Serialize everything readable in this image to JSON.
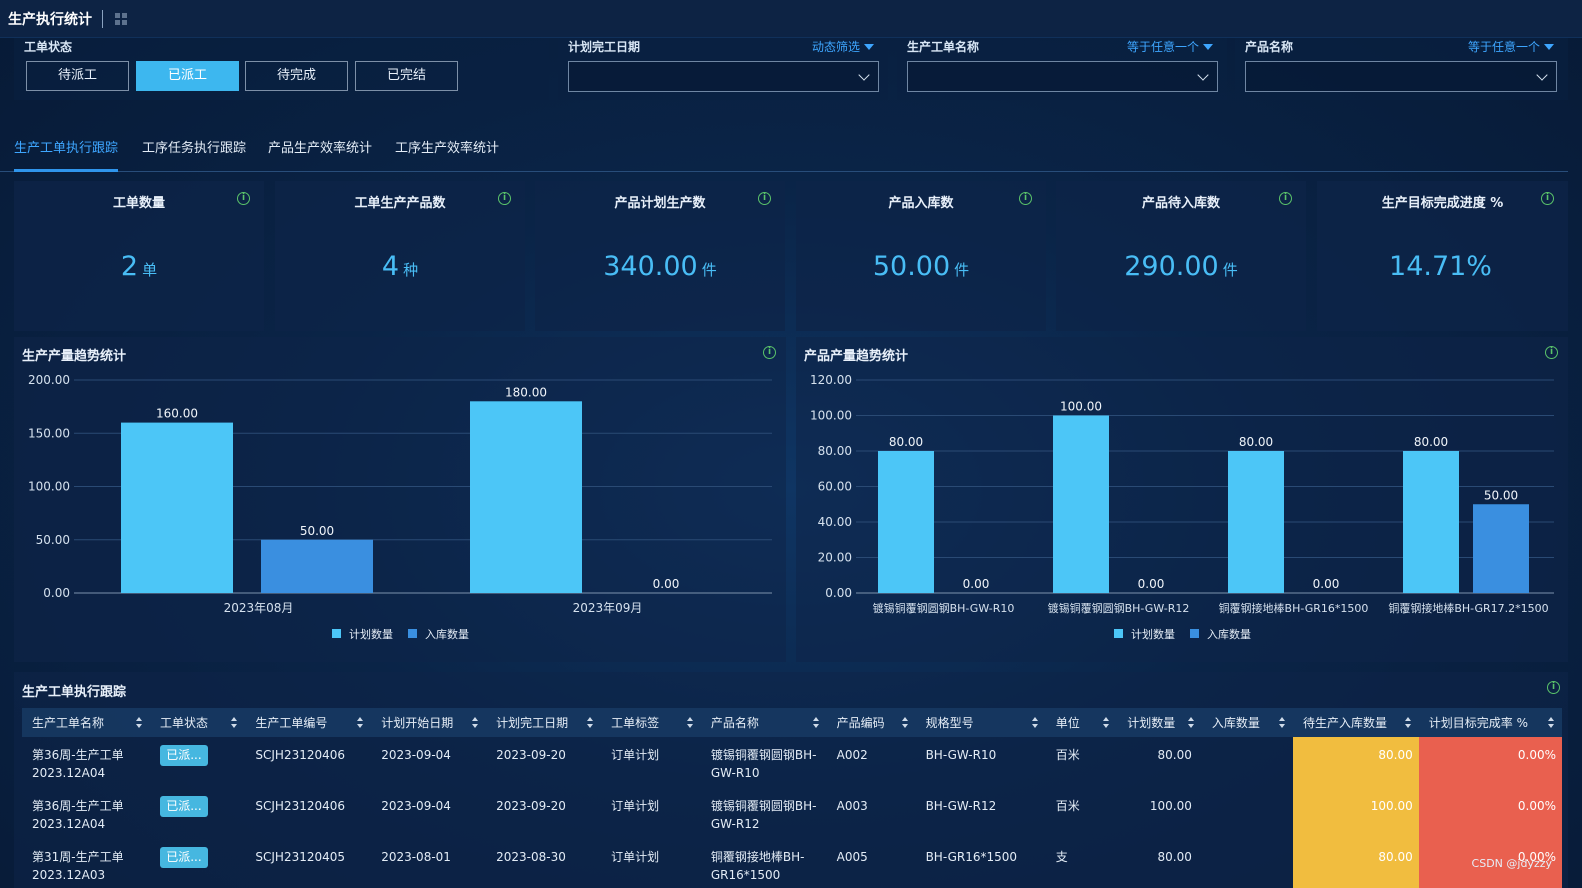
{
  "app": {
    "title": "生产执行统计"
  },
  "filters": {
    "order_status": {
      "label": "工单状态",
      "buttons": [
        {
          "label": "待派工",
          "active": false
        },
        {
          "label": "已派工",
          "active": true
        },
        {
          "label": "待完成",
          "active": false
        },
        {
          "label": "已完结",
          "active": false
        }
      ]
    },
    "plan_end_date": {
      "label": "计划完工日期",
      "mode": "动态筛选",
      "value": ""
    },
    "order_name": {
      "label": "生产工单名称",
      "mode": "等于任意一个",
      "value": ""
    },
    "product_name": {
      "label": "产品名称",
      "mode": "等于任意一个",
      "value": ""
    }
  },
  "tabs": [
    {
      "label": "生产工单执行跟踪",
      "active": true
    },
    {
      "label": "工序任务执行跟踪",
      "active": false
    },
    {
      "label": "产品生产效率统计",
      "active": false
    },
    {
      "label": "工序生产效率统计",
      "active": false
    }
  ],
  "kpis": [
    {
      "label": "工单数量",
      "value": "2",
      "unit": "单"
    },
    {
      "label": "工单生产产品数",
      "value": "4",
      "unit": "种"
    },
    {
      "label": "产品计划生产数",
      "value": "340.00",
      "unit": "件"
    },
    {
      "label": "产品入库数",
      "value": "50.00",
      "unit": "件"
    },
    {
      "label": "产品待入库数",
      "value": "290.00",
      "unit": "件"
    },
    {
      "label": "生产目标完成进度 %",
      "value": "14.71%",
      "unit": ""
    }
  ],
  "colors": {
    "plan": "#4cc6f7",
    "stock": "#3a8fe0",
    "accent": "#3ea6ff",
    "pending_cell": "#f1bd3f",
    "rate_cell": "#e9604f"
  },
  "chart_data": [
    {
      "type": "bar",
      "title": "生产产量趋势统计",
      "categories": [
        "2023年08月",
        "2023年09月"
      ],
      "series": [
        {
          "name": "计划数量",
          "values": [
            160,
            180
          ],
          "labels": [
            "160.00",
            "180.00"
          ]
        },
        {
          "name": "入库数量",
          "values": [
            50,
            0
          ],
          "labels": [
            "50.00",
            "0.00"
          ]
        }
      ],
      "ylim": [
        0,
        200
      ],
      "yticks": [
        "0.00",
        "50.00",
        "100.00",
        "150.00",
        "200.00"
      ],
      "legend": "bottom",
      "grid": true
    },
    {
      "type": "bar",
      "title": "产品产量趋势统计",
      "categories": [
        "镀锡铜覆钢圆钢BH-GW-R10",
        "镀锡铜覆钢圆钢BH-GW-R12",
        "铜覆钢接地棒BH-GR16*1500",
        "铜覆钢接地棒BH-GR17.2*1500"
      ],
      "series": [
        {
          "name": "计划数量",
          "values": [
            80,
            100,
            80,
            80
          ],
          "labels": [
            "80.00",
            "100.00",
            "80.00",
            "80.00"
          ]
        },
        {
          "name": "入库数量",
          "values": [
            0,
            0,
            0,
            50
          ],
          "labels": [
            "0.00",
            "0.00",
            "0.00",
            "50.00"
          ]
        }
      ],
      "ylim": [
        0,
        120
      ],
      "yticks": [
        "0.00",
        "20.00",
        "40.00",
        "60.00",
        "80.00",
        "100.00",
        "120.00"
      ],
      "legend": "bottom",
      "grid": true
    }
  ],
  "table": {
    "title": "生产工单执行跟踪",
    "headers": [
      "生产工单名称",
      "工单状态",
      "生产工单编号",
      "计划开始日期",
      "计划完工日期",
      "工单标签",
      "产品名称",
      "产品编码",
      "规格型号",
      "单位",
      "计划数量",
      "入库数量",
      "待生产入库数量",
      "计划目标完成率 %"
    ],
    "rows": [
      [
        "第36周-生产工单2023.12A04",
        "已派...",
        "SCJH23120406",
        "2023-09-04",
        "2023-09-20",
        "订单计划",
        "镀锡铜覆钢圆钢BH-GW-R10",
        "A002",
        "BH-GW-R10",
        "百米",
        "80.00",
        "",
        "80.00",
        "0.00%"
      ],
      [
        "第36周-生产工单2023.12A04",
        "已派...",
        "SCJH23120406",
        "2023-09-04",
        "2023-09-20",
        "订单计划",
        "镀锡铜覆钢圆钢BH-GW-R12",
        "A003",
        "BH-GW-R12",
        "百米",
        "100.00",
        "",
        "100.00",
        "0.00%"
      ],
      [
        "第31周-生产工单2023.12A03",
        "已派...",
        "SCJH23120405",
        "2023-08-01",
        "2023-08-30",
        "订单计划",
        "铜覆钢接地棒BH-GR16*1500",
        "A005",
        "BH-GR16*1500",
        "支",
        "80.00",
        "",
        "80.00",
        "0.00%"
      ]
    ]
  },
  "watermark": "CSDN @jdyzzy"
}
